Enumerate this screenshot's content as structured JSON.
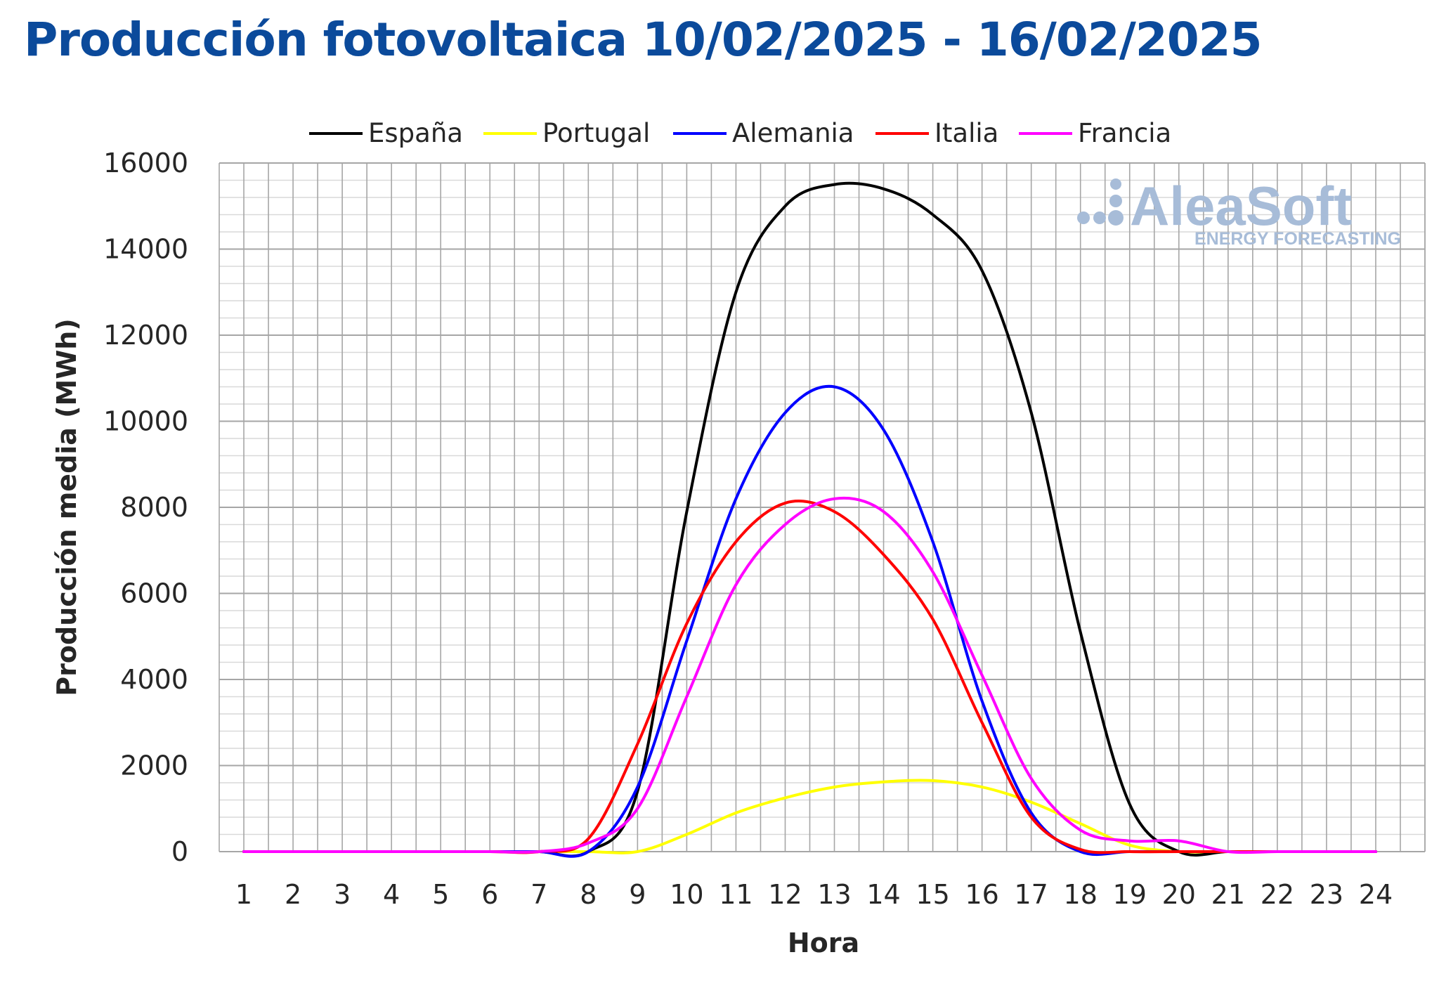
{
  "colors": {
    "title": "#0b4a9b",
    "major_grid": "#a6a6a6",
    "minor_grid": "#d9d9d9",
    "logo": "#a7bcd8"
  },
  "logo": {
    "name": "AleaSoft",
    "tagline": "ENERGY FORECASTING"
  },
  "chart_data": {
    "type": "line",
    "title": "Producción fotovoltaica 10/02/2025 - 16/02/2025",
    "xlabel": "Hora",
    "ylabel": "Producción media (MWh)",
    "ylim": [
      0,
      16000
    ],
    "yticks": [
      0,
      2000,
      4000,
      6000,
      8000,
      10000,
      12000,
      14000,
      16000
    ],
    "grid": true,
    "legend_position": "top",
    "x": [
      1,
      2,
      3,
      4,
      5,
      6,
      7,
      8,
      9,
      10,
      11,
      12,
      13,
      14,
      15,
      16,
      17,
      18,
      19,
      20,
      21,
      22,
      23,
      24
    ],
    "series": [
      {
        "name": "España",
        "color": "#000000",
        "values": [
          0,
          0,
          0,
          0,
          0,
          0,
          0,
          0,
          1400,
          7900,
          13000,
          15000,
          15500,
          15400,
          14800,
          13500,
          10200,
          5100,
          1100,
          0,
          0,
          0,
          0,
          0
        ]
      },
      {
        "name": "Portugal",
        "color": "#ffff00",
        "values": [
          0,
          0,
          0,
          0,
          0,
          0,
          0,
          0,
          0,
          400,
          900,
          1250,
          1500,
          1620,
          1650,
          1500,
          1150,
          650,
          150,
          0,
          0,
          0,
          0,
          0
        ]
      },
      {
        "name": "Alemania",
        "color": "#0000ff",
        "values": [
          0,
          0,
          0,
          0,
          0,
          0,
          0,
          0,
          1500,
          4900,
          8200,
          10200,
          10800,
          9800,
          7200,
          3500,
          900,
          0,
          0,
          0,
          0,
          0,
          0,
          0
        ]
      },
      {
        "name": "Italia",
        "color": "#ff0000",
        "values": [
          0,
          0,
          0,
          0,
          0,
          0,
          0,
          300,
          2500,
          5300,
          7200,
          8100,
          7900,
          6900,
          5400,
          3000,
          800,
          50,
          0,
          0,
          0,
          0,
          0,
          0
        ]
      },
      {
        "name": "Francia",
        "color": "#ff00ff",
        "values": [
          0,
          0,
          0,
          0,
          0,
          0,
          0,
          200,
          1000,
          3600,
          6200,
          7600,
          8200,
          7900,
          6500,
          4100,
          1700,
          500,
          250,
          250,
          0,
          0,
          0,
          0
        ]
      }
    ]
  }
}
